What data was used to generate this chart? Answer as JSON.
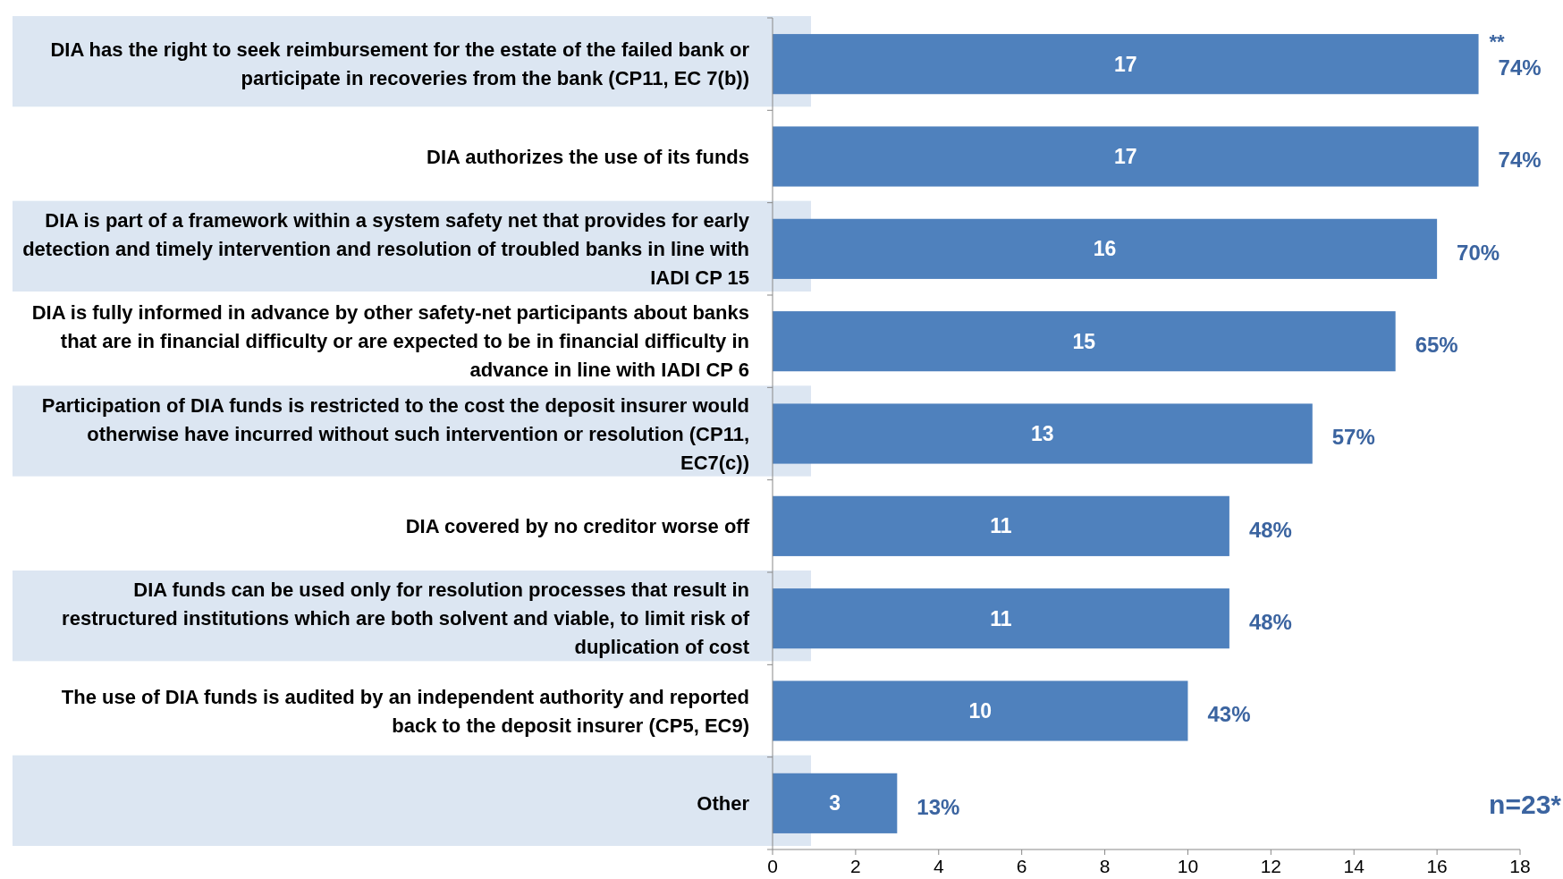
{
  "chart_data": {
    "type": "bar",
    "orientation": "horizontal",
    "categories": [
      "DIA has the right to seek reimbursement for the estate of the failed bank or participate in recoveries from the bank (CP11, EC 7(b))",
      "DIA authorizes the use of its funds",
      "DIA is part of a framework within a system safety net that provides for early detection and timely intervention and resolution of troubled banks in line with IADI CP 15",
      "DIA is fully informed in advance by other safety-net participants about banks that are in financial difficulty or are expected to be in financial difficulty in advance in line with IADI CP 6",
      "Participation of DIA funds is restricted to the cost the deposit insurer would otherwise have incurred without such intervention or resolution (CP11, EC7(c))",
      "DIA covered by no creditor worse off",
      "DIA funds can be used only for resolution processes that result in restructured institutions which are both solvent and viable, to limit risk of duplication of cost",
      "The use of DIA funds is audited by an independent authority and reported back to the deposit insurer (CP5, EC9)",
      "Other"
    ],
    "values": [
      17,
      17,
      16,
      15,
      13,
      11,
      11,
      10,
      3
    ],
    "color": "#4f81bd",
    "data_labels": true,
    "bands": [
      {
        "axis": "y",
        "from": "DIA has the right to seek reimbursement for the estate of the failed bank or participate in recoveries from the bank (CP11, EC 7(b))",
        "to": "DIA has the right to seek reimbursement for the estate of the failed bank or participate in recoveries from the bank (CP11, EC 7(b))",
        "color": "#dce6f2"
      },
      {
        "axis": "y",
        "from": "DIA is part of a framework within a system safety net that provides for early detection and timely intervention and resolution of troubled banks in line with IADI CP 15",
        "to": "DIA is part of a framework within a system safety net that provides for early detection and timely intervention and resolution of troubled banks in line with IADI CP 15",
        "color": "#dce6f2"
      },
      {
        "axis": "y",
        "from": "Participation of DIA funds is restricted to the cost the deposit insurer would otherwise have incurred without such intervention or resolution (CP11, EC7(c))",
        "to": "Participation of DIA funds is restricted to the cost the deposit insurer would otherwise have incurred without such intervention or resolution (CP11, EC7(c))",
        "color": "#dce6f2"
      },
      {
        "axis": "y",
        "from": "DIA funds can be used only for resolution processes that result in restructured institutions which are both solvent and viable, to limit risk of duplication of cost",
        "to": "DIA funds can be used only for resolution processes that result in restructured institutions which are both solvent and viable, to limit risk of duplication of cost",
        "color": "#dce6f2"
      },
      {
        "axis": "y",
        "from": "Other",
        "to": "Other",
        "color": "#dce6f2"
      }
    ],
    "xlim": [
      0,
      18
    ],
    "xticks": [
      0,
      2,
      4,
      6,
      8,
      10,
      12,
      14,
      16,
      18
    ],
    "annotations": [
      {
        "text": "**",
        "x": 17,
        "y": "DIA has the right to seek reimbursement for the estate of the failed bank or participate in recoveries from the bank (CP11, EC 7(b))"
      },
      {
        "text": "74%",
        "x": 17,
        "y": "DIA has the right to seek reimbursement for the estate of the failed bank or participate in recoveries from the bank (CP11, EC 7(b))"
      },
      {
        "text": "74%",
        "x": 17,
        "y": "DIA authorizes the use of its funds"
      },
      {
        "text": "70%",
        "x": 16,
        "y": "DIA is part of a framework within a system safety net that provides for early detection and timely intervention and resolution of troubled banks in line with IADI CP 15"
      },
      {
        "text": "65%",
        "x": 15,
        "y": "DIA is fully informed in advance by other safety-net participants about banks that are in financial difficulty or are expected to be in financial difficulty in advance in line with IADI CP 6"
      },
      {
        "text": "57%",
        "x": 13,
        "y": "Participation of DIA funds is restricted to the cost the deposit insurer would otherwise have incurred without such intervention or resolution (CP11, EC7(c))"
      },
      {
        "text": "48%",
        "x": 11,
        "y": "DIA covered by no creditor worse off"
      },
      {
        "text": "48%",
        "x": 11,
        "y": "DIA funds can be used only for resolution processes that result in restructured institutions which are both solvent and viable, to limit risk of duplication of cost"
      },
      {
        "text": "43%",
        "x": 10,
        "y": "The use of DIA funds is audited by an independent authority and reported back to the deposit insurer (CP5, EC9)"
      },
      {
        "text": "13%",
        "x": 3,
        "y": "Other"
      },
      "n=23*"
    ]
  }
}
